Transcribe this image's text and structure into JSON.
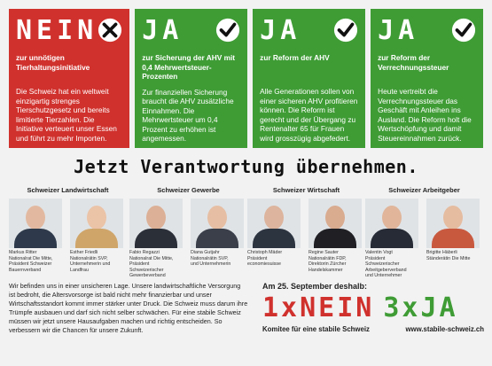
{
  "colors": {
    "nein": "#d0312d",
    "ja": "#3f9c35"
  },
  "panels": [
    {
      "word": "NEIN",
      "mark": "cross-icon",
      "title": "zur unnötigen Tierhaltungsinitiative",
      "body": "Die Schweiz hat ein weltweit einzigartig strenges Tierschutzgesetz und bereits limitierte Tierzahlen. Die Initiative verteuert unser Essen und führt zu mehr Importen."
    },
    {
      "word": "JA",
      "mark": "check-icon",
      "title": "zur Sicherung der AHV mit 0,4 Mehrwertsteuer-Prozenten",
      "body": "Zur finanziellen Sicherung braucht die AHV zusätzliche Einnahmen. Die Mehrwertsteuer um 0,4 Prozent zu erhöhen ist angemessen."
    },
    {
      "word": "JA",
      "mark": "check-icon",
      "title": "zur Reform der AHV",
      "body": "Alle Generationen sollen von einer sicheren AHV profitieren können. Die Reform ist gerecht und der Übergang zu Rentenalter 65 für Frauen wird grosszügig abgefedert."
    },
    {
      "word": "JA",
      "mark": "check-icon",
      "title": "zur Reform der Verrechnungssteuer",
      "body": "Heute vertreibt die Verrechnungssteuer das Geschäft mit Anleihen ins Ausland. Die Reform holt die Wertschöpfung und damit Steuereinnahmen zurück."
    }
  ],
  "headline": "Jetzt Verantwortung übernehmen.",
  "groups": [
    {
      "title": "Schweizer Landwirtschaft",
      "people": [
        {
          "info": "Markus Ritter\nNationalrat Die Mitte,\nPräsident Schweizer\nBauernverband",
          "skin": "#e2b9a0",
          "shirt": "#2e3a4b"
        },
        {
          "info": "Esther Friedli\nNationalrätin SVP,\nUnternehmerin und\nLandfrau",
          "skin": "#ebc3a7",
          "shirt": "#cfa56a"
        }
      ]
    },
    {
      "title": "Schweizer Gewerbe",
      "people": [
        {
          "info": "Fabio Regazzi\nNationalrat Die Mitte,\nPräsident\nSchweizerischer\nGewerbeverband",
          "skin": "#dcb096",
          "shirt": "#2b2f38"
        },
        {
          "info": "Diana Gutjahr\nNationalrätin SVP,\nund Unternehmerin",
          "skin": "#e6bea3",
          "shirt": "#3a3f4a"
        }
      ]
    },
    {
      "title": "Schweizer Wirtschaft",
      "people": [
        {
          "info": "Christoph Mäder\nPräsident\neconomiesuisse",
          "skin": "#ddb49d",
          "shirt": "#2c3440"
        },
        {
          "info": "Regine Sauter\nNationalrätin FDP,\nDirektorin Zürcher\nHandelskammer",
          "skin": "#d9ab8f",
          "shirt": "#1f1f24"
        }
      ]
    },
    {
      "title": "Schweizer Arbeitgeber",
      "people": [
        {
          "info": "Valentin Vogt\nPräsident\nSchweizerischer\nArbeitgeberverband\nund Unternehmer",
          "skin": "#e0b59a",
          "shirt": "#262b35"
        },
        {
          "info": "Brigitte Häberli\nStänderätin Die Mitte",
          "skin": "#e5bca0",
          "shirt": "#c8593f"
        }
      ]
    }
  ],
  "bottom_text": "Wir befinden uns in einer unsicheren Lage. Unsere landwirtschaftliche Versorgung ist bedroht, die Altersvorsorge ist bald nicht mehr finanzierbar und unser Wirtschaftsstandort kommt immer stärker unter Druck. Die Schweiz muss darum ihre Trümpfe ausbauen und darf sich nicht selber schwächen. Für eine stabile Schweiz müssen wir jetzt unsere Hausaufgaben machen und richtig entscheiden. So verbessern wir die Chancen für unsere Zukunft.",
  "cta": {
    "date": "Am 25. September deshalb:",
    "nein": "1xNEIN",
    "ja": "3xJA",
    "committee": "Komitee für eine stabile Schweiz",
    "url": "www.stabile-schweiz.ch"
  }
}
